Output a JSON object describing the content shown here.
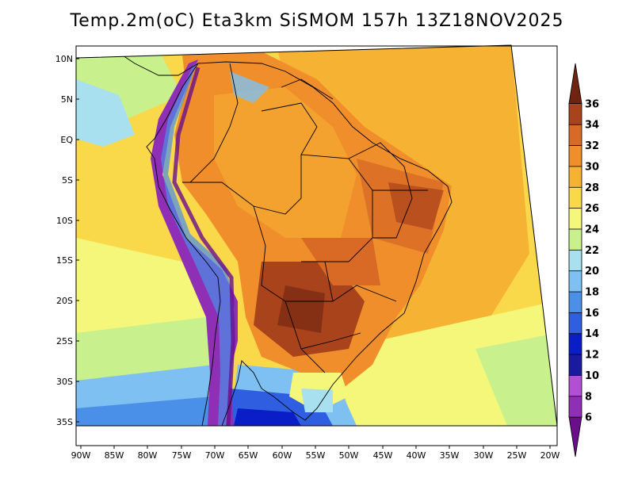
{
  "title": "Temp.2m(oC) Eta3km SiSMOM 157h 13Z18NOV2025",
  "map": {
    "field": "2 m temperature",
    "projection": "polar-stereographic regional domain over South America",
    "lat_labels": [
      "10N",
      "5N",
      "EQ",
      "5S",
      "10S",
      "15S",
      "20S",
      "25S",
      "30S",
      "35S"
    ],
    "lon_labels": [
      "90W",
      "85W",
      "80W",
      "75W",
      "70W",
      "65W",
      "60W",
      "55W",
      "50W",
      "45W",
      "40W",
      "35W",
      "30W",
      "25W",
      "20W"
    ]
  },
  "colorbar": {
    "levels": [
      "6",
      "8",
      "10",
      "12",
      "14",
      "16",
      "18",
      "20",
      "22",
      "24",
      "26",
      "28",
      "30",
      "32",
      "34",
      "36"
    ],
    "colors": [
      "#6a0f8c",
      "#8e2fb5",
      "#b24fd4",
      "#1a1aa0",
      "#0a1ec8",
      "#2f5fe0",
      "#4a8fe8",
      "#7fc0f2",
      "#a8e0f0",
      "#c8f08c",
      "#f5f77a",
      "#f9d84a",
      "#f6b233",
      "#ef8e2a",
      "#d86a25",
      "#a9431b",
      "#6e2410"
    ]
  }
}
